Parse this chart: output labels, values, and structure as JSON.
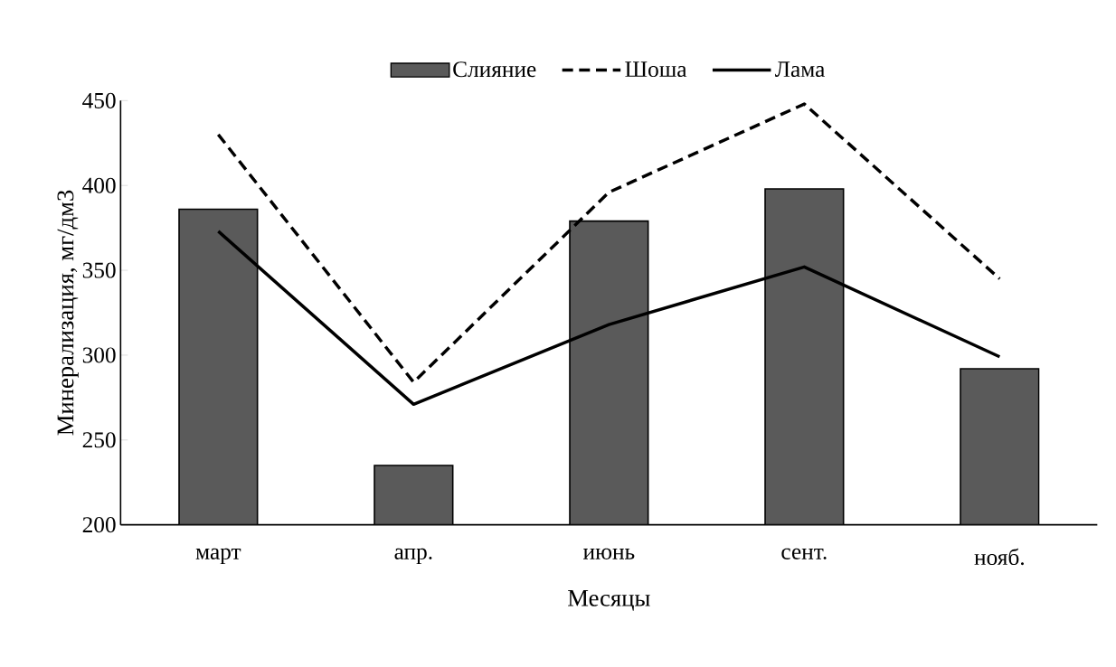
{
  "chart_data": {
    "type": "bar",
    "xlabel": "Месяцы",
    "ylabel": "Минерализация, мг/дм3",
    "categories": [
      "март",
      "апр.",
      "июнь",
      "сент.",
      "нояб."
    ],
    "series": [
      {
        "name": "Слияние",
        "color": "#5a5a5a",
        "values": [
          386,
          235,
          379,
          398,
          292
        ]
      },
      {
        "name": "Шоша",
        "type": "line",
        "color": "#000000",
        "line_style": "dashed",
        "values": [
          430,
          284,
          396,
          448,
          345
        ]
      },
      {
        "name": "Лама",
        "type": "line",
        "color": "#000000",
        "line_style": "solid",
        "values": [
          373,
          271,
          318,
          352,
          299
        ]
      }
    ],
    "ylim": [
      200,
      450
    ],
    "yticks": [
      200,
      250,
      300,
      350,
      400,
      450
    ],
    "grid": false,
    "legend": "top"
  }
}
